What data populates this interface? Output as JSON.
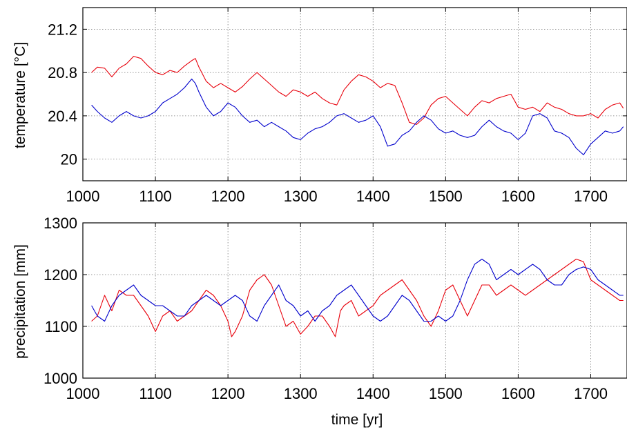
{
  "chart_data": [
    {
      "type": "line",
      "title": "",
      "xlabel": "",
      "ylabel": "temperature [°C]",
      "xlim": [
        1000,
        1750
      ],
      "ylim": [
        19.8,
        21.4
      ],
      "xticks": [
        1000,
        1100,
        1200,
        1300,
        1400,
        1500,
        1600,
        1700
      ],
      "yticks": [
        20,
        20.4,
        20.8,
        21.2
      ],
      "ytick_labels": [
        "20",
        "20.4",
        "20.8",
        "21.2"
      ],
      "grid": true,
      "series": [
        {
          "color": "#e8000b",
          "x": [
            1012,
            1020,
            1030,
            1040,
            1050,
            1060,
            1070,
            1080,
            1090,
            1100,
            1110,
            1120,
            1130,
            1140,
            1150,
            1155,
            1160,
            1170,
            1180,
            1190,
            1200,
            1210,
            1220,
            1230,
            1240,
            1250,
            1260,
            1270,
            1280,
            1290,
            1300,
            1310,
            1320,
            1330,
            1340,
            1350,
            1360,
            1370,
            1380,
            1390,
            1400,
            1410,
            1420,
            1430,
            1440,
            1450,
            1460,
            1470,
            1480,
            1490,
            1500,
            1510,
            1520,
            1530,
            1540,
            1550,
            1560,
            1570,
            1580,
            1590,
            1600,
            1610,
            1620,
            1630,
            1640,
            1650,
            1660,
            1670,
            1680,
            1690,
            1700,
            1710,
            1720,
            1730,
            1740,
            1745
          ],
          "y": [
            20.8,
            20.85,
            20.84,
            20.76,
            20.84,
            20.88,
            20.95,
            20.93,
            20.86,
            20.8,
            20.78,
            20.82,
            20.8,
            20.86,
            20.91,
            20.93,
            20.85,
            20.72,
            20.66,
            20.7,
            20.66,
            20.62,
            20.67,
            20.74,
            20.8,
            20.74,
            20.68,
            20.62,
            20.58,
            20.64,
            20.62,
            20.58,
            20.62,
            20.56,
            20.52,
            20.5,
            20.64,
            20.72,
            20.78,
            20.76,
            20.72,
            20.66,
            20.7,
            20.68,
            20.52,
            20.34,
            20.32,
            20.38,
            20.5,
            20.56,
            20.58,
            20.52,
            20.46,
            20.4,
            20.48,
            20.54,
            20.52,
            20.56,
            20.58,
            20.6,
            20.48,
            20.46,
            20.48,
            20.44,
            20.52,
            20.48,
            20.46,
            20.42,
            20.4,
            20.4,
            20.42,
            20.38,
            20.46,
            20.5,
            20.52,
            20.47
          ]
        },
        {
          "color": "#0000cc",
          "x": [
            1012,
            1020,
            1030,
            1040,
            1050,
            1060,
            1070,
            1080,
            1090,
            1100,
            1110,
            1120,
            1130,
            1140,
            1150,
            1155,
            1160,
            1170,
            1180,
            1190,
            1200,
            1210,
            1220,
            1230,
            1240,
            1250,
            1260,
            1270,
            1280,
            1290,
            1300,
            1310,
            1320,
            1330,
            1340,
            1350,
            1360,
            1370,
            1380,
            1390,
            1400,
            1410,
            1420,
            1430,
            1440,
            1450,
            1460,
            1470,
            1480,
            1490,
            1500,
            1510,
            1520,
            1530,
            1540,
            1550,
            1560,
            1570,
            1580,
            1590,
            1600,
            1610,
            1620,
            1630,
            1640,
            1650,
            1660,
            1670,
            1680,
            1690,
            1700,
            1710,
            1720,
            1730,
            1740,
            1745
          ],
          "y": [
            20.5,
            20.44,
            20.38,
            20.34,
            20.4,
            20.44,
            20.4,
            20.38,
            20.4,
            20.44,
            20.52,
            20.56,
            20.6,
            20.66,
            20.74,
            20.7,
            20.62,
            20.48,
            20.4,
            20.44,
            20.52,
            20.48,
            20.4,
            20.34,
            20.36,
            20.3,
            20.34,
            20.3,
            20.26,
            20.2,
            20.18,
            20.24,
            20.28,
            20.3,
            20.34,
            20.4,
            20.42,
            20.38,
            20.34,
            20.36,
            20.4,
            20.3,
            20.12,
            20.14,
            20.22,
            20.26,
            20.34,
            20.4,
            20.36,
            20.28,
            20.24,
            20.26,
            20.22,
            20.2,
            20.22,
            20.3,
            20.36,
            20.3,
            20.26,
            20.24,
            20.18,
            20.24,
            20.4,
            20.42,
            20.38,
            20.26,
            20.24,
            20.2,
            20.1,
            20.04,
            20.14,
            20.2,
            20.26,
            20.24,
            20.26,
            20.3
          ]
        }
      ]
    },
    {
      "type": "line",
      "title": "",
      "xlabel": "time [yr]",
      "ylabel": "precipitation [mm]",
      "xlim": [
        1000,
        1750
      ],
      "ylim": [
        1000,
        1300
      ],
      "xticks": [
        1000,
        1100,
        1200,
        1300,
        1400,
        1500,
        1600,
        1700
      ],
      "yticks": [
        1000,
        1100,
        1200,
        1300
      ],
      "ytick_labels": [
        "1000",
        "1100",
        "1200",
        "1300"
      ],
      "grid": true,
      "series": [
        {
          "color": "#e8000b",
          "x": [
            1012,
            1020,
            1030,
            1040,
            1050,
            1060,
            1070,
            1080,
            1090,
            1100,
            1110,
            1120,
            1130,
            1140,
            1150,
            1160,
            1170,
            1180,
            1190,
            1200,
            1205,
            1210,
            1220,
            1230,
            1240,
            1250,
            1260,
            1270,
            1280,
            1290,
            1300,
            1310,
            1320,
            1330,
            1340,
            1348,
            1355,
            1360,
            1370,
            1380,
            1390,
            1400,
            1410,
            1420,
            1430,
            1440,
            1450,
            1460,
            1470,
            1480,
            1490,
            1500,
            1510,
            1520,
            1530,
            1540,
            1550,
            1560,
            1570,
            1580,
            1590,
            1600,
            1610,
            1620,
            1630,
            1640,
            1650,
            1660,
            1670,
            1680,
            1690,
            1700,
            1710,
            1720,
            1730,
            1740,
            1745
          ],
          "y": [
            1110,
            1120,
            1160,
            1130,
            1170,
            1160,
            1160,
            1140,
            1120,
            1090,
            1120,
            1130,
            1110,
            1120,
            1130,
            1150,
            1170,
            1160,
            1140,
            1110,
            1080,
            1090,
            1120,
            1170,
            1190,
            1200,
            1180,
            1140,
            1100,
            1110,
            1085,
            1100,
            1120,
            1120,
            1100,
            1080,
            1130,
            1140,
            1150,
            1120,
            1130,
            1140,
            1160,
            1170,
            1180,
            1190,
            1170,
            1150,
            1120,
            1100,
            1130,
            1170,
            1180,
            1150,
            1120,
            1150,
            1180,
            1180,
            1160,
            1170,
            1180,
            1170,
            1160,
            1170,
            1180,
            1190,
            1200,
            1210,
            1220,
            1230,
            1225,
            1190,
            1180,
            1170,
            1160,
            1150,
            1150
          ]
        },
        {
          "color": "#0000cc",
          "x": [
            1012,
            1020,
            1030,
            1040,
            1050,
            1060,
            1070,
            1080,
            1090,
            1100,
            1110,
            1120,
            1130,
            1140,
            1150,
            1160,
            1170,
            1180,
            1190,
            1200,
            1210,
            1220,
            1230,
            1240,
            1250,
            1260,
            1270,
            1280,
            1290,
            1300,
            1310,
            1320,
            1330,
            1340,
            1350,
            1360,
            1370,
            1380,
            1390,
            1400,
            1410,
            1420,
            1430,
            1440,
            1450,
            1460,
            1470,
            1480,
            1490,
            1500,
            1510,
            1520,
            1530,
            1540,
            1550,
            1560,
            1570,
            1580,
            1590,
            1600,
            1610,
            1620,
            1630,
            1640,
            1650,
            1660,
            1670,
            1680,
            1690,
            1700,
            1710,
            1720,
            1730,
            1740,
            1745
          ],
          "y": [
            1140,
            1120,
            1110,
            1140,
            1160,
            1170,
            1180,
            1160,
            1150,
            1140,
            1140,
            1130,
            1120,
            1120,
            1140,
            1150,
            1160,
            1150,
            1140,
            1150,
            1160,
            1150,
            1120,
            1110,
            1140,
            1160,
            1180,
            1150,
            1140,
            1120,
            1130,
            1110,
            1130,
            1140,
            1160,
            1170,
            1180,
            1160,
            1140,
            1120,
            1110,
            1120,
            1140,
            1160,
            1150,
            1130,
            1110,
            1110,
            1120,
            1110,
            1120,
            1150,
            1190,
            1220,
            1230,
            1220,
            1190,
            1200,
            1210,
            1200,
            1210,
            1220,
            1210,
            1190,
            1180,
            1180,
            1200,
            1210,
            1215,
            1210,
            1190,
            1180,
            1170,
            1160,
            1160
          ]
        }
      ]
    }
  ]
}
